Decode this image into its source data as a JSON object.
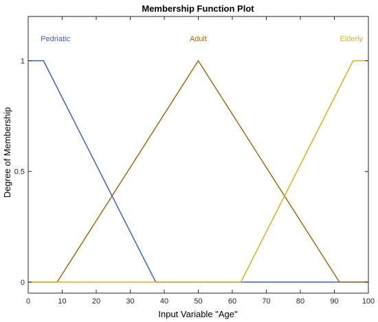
{
  "chart_data": {
    "type": "line",
    "title": "Membership Function Plot",
    "xlabel": "Input Variable \"Age\"",
    "ylabel": "Degree of Membership",
    "xlim": [
      0,
      100
    ],
    "ylim": [
      -0.05,
      1.2
    ],
    "xticks": [
      0,
      10,
      20,
      30,
      40,
      50,
      60,
      70,
      80,
      90,
      100
    ],
    "yticks": [
      0,
      0.5,
      1
    ],
    "ytick_labels": [
      "0",
      "0.5",
      "1"
    ],
    "grid": false,
    "series": [
      {
        "name": "Pedriatic",
        "color": "#3a5fbd",
        "x": [
          0,
          4.5,
          37.5,
          100
        ],
        "y": [
          1,
          1,
          0,
          0
        ],
        "label_pos": [
          8,
          1.1
        ]
      },
      {
        "name": "Adult",
        "color": "#9b6b1a",
        "x": [
          0,
          8.5,
          50,
          91.5,
          100
        ],
        "y": [
          0,
          0,
          1,
          0,
          0
        ],
        "label_pos": [
          50,
          1.1
        ]
      },
      {
        "name": "Elderly",
        "color": "#d3b21e",
        "x": [
          0,
          62.5,
          95.5,
          100
        ],
        "y": [
          0,
          0,
          1,
          1
        ],
        "label_pos": [
          95,
          1.1
        ]
      }
    ]
  }
}
